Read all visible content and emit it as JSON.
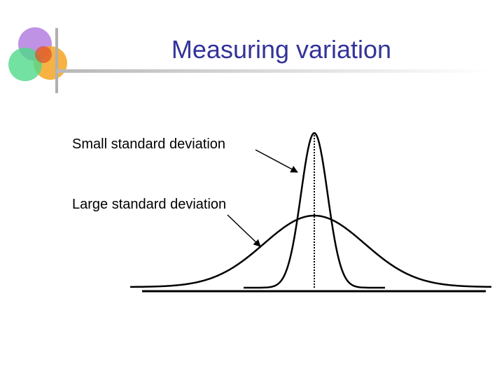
{
  "slide": {
    "title": "Measuring variation",
    "labels": [
      "Small standard deviation",
      "Large standard deviation"
    ]
  }
}
